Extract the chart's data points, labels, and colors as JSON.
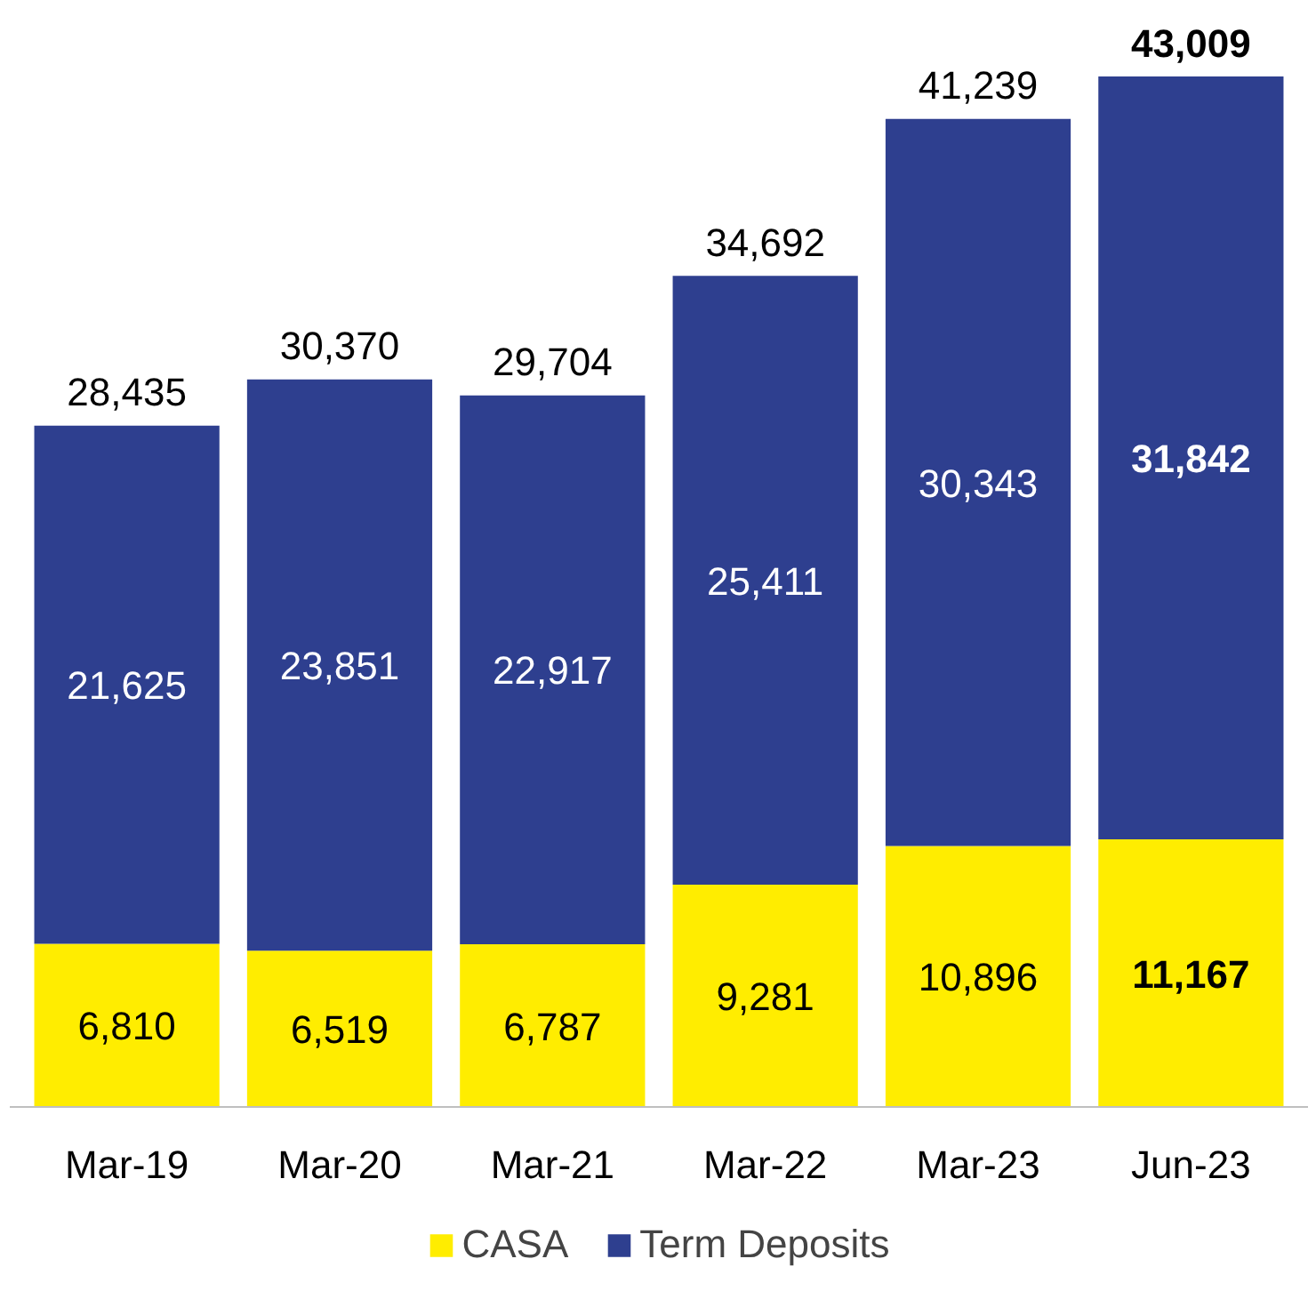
{
  "chart_data": {
    "type": "bar",
    "stacked": true,
    "categories": [
      "Mar-19",
      "Mar-20",
      "Mar-21",
      "Mar-22",
      "Mar-23",
      "Jun-23"
    ],
    "series": [
      {
        "name": "CASA",
        "color": "#ffed00",
        "values": [
          6810,
          6519,
          6787,
          9281,
          10896,
          11167
        ],
        "value_labels": [
          "6,810",
          "6,519",
          "6,787",
          "9,281",
          "10,896",
          "11,167"
        ]
      },
      {
        "name": "Term Deposits",
        "color": "#2e3f8f",
        "values": [
          21625,
          23851,
          22917,
          25411,
          30343,
          31842
        ],
        "value_labels": [
          "21,625",
          "23,851",
          "22,917",
          "25,411",
          "30,343",
          "31,842"
        ]
      }
    ],
    "totals": [
      "28,435",
      "30,370",
      "29,704",
      "34,692",
      "41,239",
      "43,009"
    ],
    "legend": "bottom",
    "grid": false
  }
}
